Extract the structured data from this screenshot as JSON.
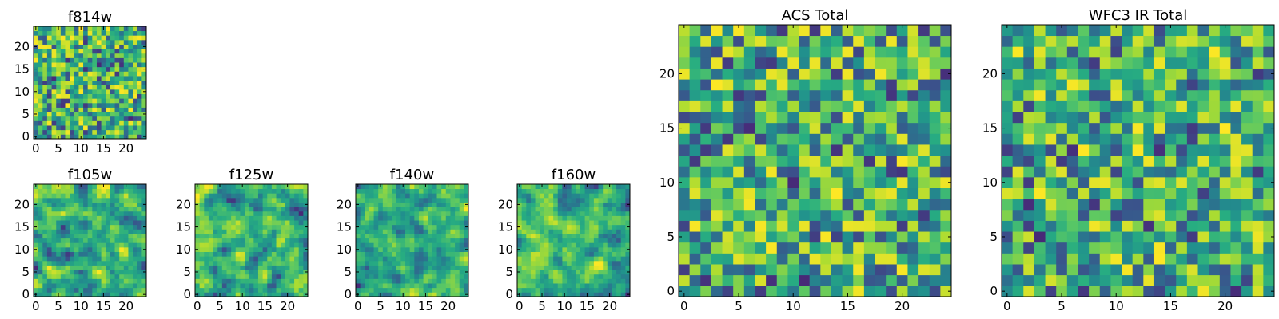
{
  "chart_data": [
    {
      "type": "heatmap",
      "title": "f814w",
      "xlim": [
        0,
        24
      ],
      "ylim": [
        0,
        24
      ],
      "xticks": [
        "0",
        "5",
        "10",
        "15",
        "20"
      ],
      "yticks": [
        "0",
        "5",
        "10",
        "15",
        "20"
      ],
      "colormap": "viridis",
      "grid_size": 25,
      "seed": 11,
      "smooth": 0
    },
    {
      "type": "heatmap",
      "title": "f105w",
      "xlim": [
        0,
        24
      ],
      "ylim": [
        0,
        24
      ],
      "xticks": [
        "0",
        "5",
        "10",
        "15",
        "20"
      ],
      "yticks": [
        "0",
        "5",
        "10",
        "15",
        "20"
      ],
      "colormap": "viridis",
      "grid_size": 25,
      "seed": 23,
      "smooth": 1
    },
    {
      "type": "heatmap",
      "title": "f125w",
      "xlim": [
        0,
        24
      ],
      "ylim": [
        0,
        24
      ],
      "xticks": [
        "0",
        "5",
        "10",
        "15",
        "20"
      ],
      "yticks": [
        "0",
        "5",
        "10",
        "15",
        "20"
      ],
      "colormap": "viridis",
      "grid_size": 25,
      "seed": 37,
      "smooth": 1
    },
    {
      "type": "heatmap",
      "title": "f140w",
      "xlim": [
        0,
        24
      ],
      "ylim": [
        0,
        24
      ],
      "xticks": [
        "0",
        "5",
        "10",
        "15",
        "20"
      ],
      "yticks": [
        "0",
        "5",
        "10",
        "15",
        "20"
      ],
      "colormap": "viridis",
      "grid_size": 25,
      "seed": 41,
      "smooth": 1
    },
    {
      "type": "heatmap",
      "title": "f160w",
      "xlim": [
        0,
        24
      ],
      "ylim": [
        0,
        24
      ],
      "xticks": [
        "0",
        "5",
        "10",
        "15",
        "20"
      ],
      "yticks": [
        "0",
        "5",
        "10",
        "15",
        "20"
      ],
      "colormap": "viridis",
      "grid_size": 25,
      "seed": 53,
      "smooth": 1
    },
    {
      "type": "heatmap",
      "title": "ACS Total",
      "xlim": [
        0,
        24
      ],
      "ylim": [
        0,
        24
      ],
      "xticks": [
        "0",
        "5",
        "10",
        "15",
        "20"
      ],
      "yticks": [
        "0",
        "5",
        "10",
        "15",
        "20"
      ],
      "colormap": "viridis",
      "grid_size": 25,
      "seed": 67,
      "smooth": 0
    },
    {
      "type": "heatmap",
      "title": "WFC3 IR Total",
      "xlim": [
        0,
        24
      ],
      "ylim": [
        0,
        24
      ],
      "xticks": [
        "0",
        "5",
        "10",
        "15",
        "20"
      ],
      "yticks": [
        "0",
        "5",
        "10",
        "15",
        "20"
      ],
      "colormap": "viridis",
      "grid_size": 25,
      "seed": 79,
      "smooth": 0
    }
  ]
}
